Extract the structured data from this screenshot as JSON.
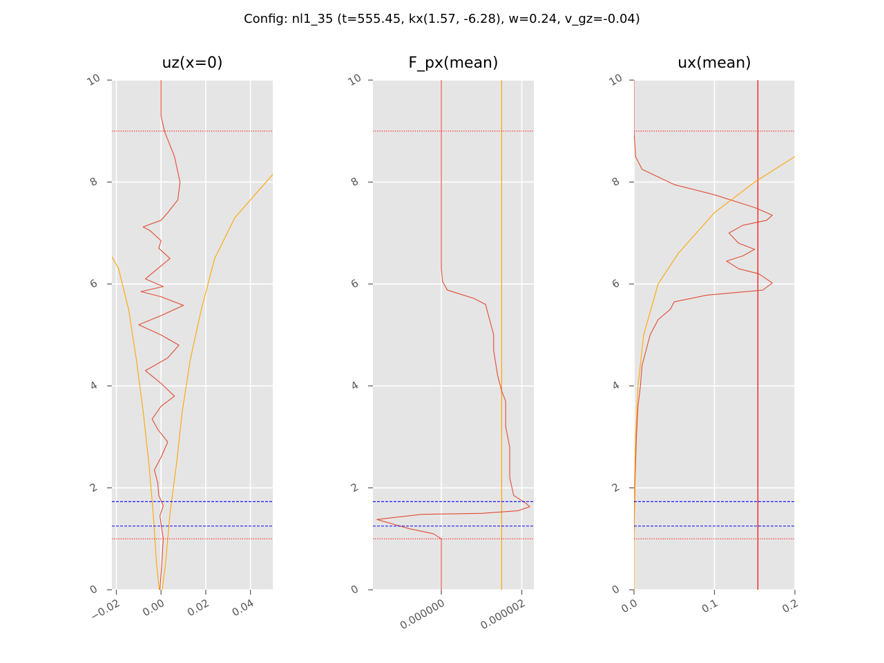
{
  "figure": {
    "title": "Config: nl1_35 (t=555.45, kx(1.57, -6.28), w=0.24, v_gz=-0.04)"
  },
  "colors": {
    "background": "#e5e5e5",
    "grid": "#ffffff",
    "profile": "#e24a33",
    "envelope": "#ffa500",
    "blue_lines": "#0000ff",
    "red_dotted": "#ff0000",
    "red_vertical": "#ff0000",
    "tick_text": "#555555"
  },
  "chart_data": [
    {
      "type": "line",
      "title": "uz(x=0)",
      "xlim": [
        -0.022,
        0.05
      ],
      "ylim": [
        0,
        10
      ],
      "xticks": [
        -0.02,
        0.0,
        0.02,
        0.04
      ],
      "xtick_labels": [
        "−0.02",
        "0.00",
        "0.02",
        "0.04"
      ],
      "yticks": [
        0,
        2,
        4,
        6,
        8,
        10
      ],
      "ytick_labels": [
        "0",
        "2",
        "4",
        "6",
        "8",
        "10"
      ],
      "grid": true,
      "hlines_dashed": [
        1.25,
        1.73
      ],
      "hlines_dotted": [
        1.0,
        9.0
      ],
      "series": [
        {
          "role": "profile",
          "points": [
            [
              -0.0005,
              0
            ],
            [
              0.0003,
              0.5
            ],
            [
              0.001,
              1.0
            ],
            [
              0.0003,
              1.2
            ],
            [
              -0.0005,
              1.45
            ],
            [
              0.001,
              1.65
            ],
            [
              -0.001,
              1.85
            ],
            [
              -0.0015,
              2.1
            ],
            [
              -0.003,
              2.35
            ],
            [
              0.0,
              2.6
            ],
            [
              0.003,
              2.9
            ],
            [
              -0.0015,
              3.15
            ],
            [
              -0.004,
              3.35
            ],
            [
              0.0,
              3.6
            ],
            [
              0.006,
              3.8
            ],
            [
              0.0,
              4.05
            ],
            [
              -0.007,
              4.3
            ],
            [
              0.003,
              4.55
            ],
            [
              0.008,
              4.8
            ],
            [
              0.0,
              5.0
            ],
            [
              -0.01,
              5.2
            ],
            [
              0.0,
              5.38
            ],
            [
              0.01,
              5.58
            ],
            [
              0.0,
              5.75
            ],
            [
              -0.009,
              5.85
            ],
            [
              0.001,
              5.95
            ],
            [
              -0.007,
              6.1
            ],
            [
              -0.0015,
              6.3
            ],
            [
              0.004,
              6.5
            ],
            [
              -0.001,
              6.7
            ],
            [
              0.0,
              6.85
            ],
            [
              -0.005,
              7.05
            ],
            [
              -0.008,
              7.12
            ],
            [
              0.0,
              7.25
            ],
            [
              0.003,
              7.4
            ],
            [
              0.0075,
              7.65
            ],
            [
              0.0085,
              8.0
            ],
            [
              0.006,
              8.5
            ],
            [
              0.0015,
              9.0
            ],
            [
              0.0,
              9.3
            ],
            [
              0.0,
              10.0
            ]
          ]
        },
        {
          "role": "envelope-right",
          "points": [
            [
              0.0005,
              0
            ],
            [
              0.002,
              0.5
            ],
            [
              0.004,
              1.5
            ],
            [
              0.007,
              2.5
            ],
            [
              0.0095,
              3.5
            ],
            [
              0.013,
              4.5
            ],
            [
              0.018,
              5.5
            ],
            [
              0.024,
              6.5
            ],
            [
              0.033,
              7.3
            ],
            [
              0.05,
              8.15
            ]
          ]
        },
        {
          "role": "envelope-left",
          "points": [
            [
              -0.0008,
              0
            ],
            [
              -0.002,
              0.5
            ],
            [
              -0.0035,
              1.5
            ],
            [
              -0.0055,
              2.5
            ],
            [
              -0.008,
              3.5
            ],
            [
              -0.011,
              4.5
            ],
            [
              -0.0145,
              5.5
            ],
            [
              -0.019,
              6.3
            ],
            [
              -0.0235,
              6.65
            ]
          ]
        }
      ]
    },
    {
      "type": "line",
      "title": "F_px(mean)",
      "xlim": [
        -1.7e-06,
        2.3e-06
      ],
      "ylim": [
        0,
        10
      ],
      "xticks": [
        0.0,
        2e-06
      ],
      "xtick_labels": [
        "0.000000",
        "0.000002"
      ],
      "yticks": [
        0,
        2,
        4,
        6,
        8,
        10
      ],
      "ytick_labels": [
        "0",
        "2",
        "4",
        "6",
        "8",
        "10"
      ],
      "grid": true,
      "hlines_dashed": [
        1.25,
        1.73
      ],
      "hlines_dotted": [
        1.0,
        9.0
      ],
      "vline_envelope": 1.5e-06,
      "series": [
        {
          "role": "profile",
          "points": [
            [
              0.0,
              0
            ],
            [
              0.0,
              1.0
            ],
            [
              -2e-07,
              1.1
            ],
            [
              -8e-07,
              1.2
            ],
            [
              -1.6e-06,
              1.38
            ],
            [
              -5e-07,
              1.48
            ],
            [
              1e-06,
              1.5
            ],
            [
              1.9e-06,
              1.55
            ],
            [
              2.2e-06,
              1.63
            ],
            [
              2.1e-06,
              1.7
            ],
            [
              1.8e-06,
              1.85
            ],
            [
              1.7e-06,
              2.2
            ],
            [
              1.7e-06,
              2.8
            ],
            [
              1.6e-06,
              3.2
            ],
            [
              1.6e-06,
              3.7
            ],
            [
              1.5e-06,
              3.9
            ],
            [
              1.4e-06,
              4.2
            ],
            [
              1.3e-06,
              4.7
            ],
            [
              1.3e-06,
              5.0
            ],
            [
              1.2e-06,
              5.3
            ],
            [
              1.1e-06,
              5.6
            ],
            [
              8e-07,
              5.72
            ],
            [
              1.5e-07,
              5.88
            ],
            [
              3e-08,
              6.05
            ],
            [
              0.0,
              6.3
            ],
            [
              0.0,
              10.0
            ]
          ]
        }
      ]
    },
    {
      "type": "line",
      "title": "ux(mean)",
      "xlim": [
        0.0,
        0.2
      ],
      "ylim": [
        0,
        10
      ],
      "xticks": [
        0.0,
        0.1,
        0.2
      ],
      "xtick_labels": [
        "0.0",
        "0.1",
        "0.2"
      ],
      "yticks": [
        0,
        2,
        4,
        6,
        8,
        10
      ],
      "ytick_labels": [
        "0",
        "2",
        "4",
        "6",
        "8",
        "10"
      ],
      "grid": true,
      "hlines_dashed": [
        1.25,
        1.73
      ],
      "hlines_dotted": [
        1.0,
        9.0
      ],
      "vline_red": 0.154,
      "series": [
        {
          "role": "profile",
          "points": [
            [
              0.0,
              0
            ],
            [
              0.0,
              1.0
            ],
            [
              0.001,
              2.0
            ],
            [
              0.003,
              3.0
            ],
            [
              0.005,
              3.6
            ],
            [
              0.008,
              4.0
            ],
            [
              0.01,
              4.4
            ],
            [
              0.015,
              4.7
            ],
            [
              0.02,
              5.0
            ],
            [
              0.03,
              5.3
            ],
            [
              0.045,
              5.5
            ],
            [
              0.05,
              5.65
            ],
            [
              0.09,
              5.78
            ],
            [
              0.16,
              5.88
            ],
            [
              0.172,
              6.02
            ],
            [
              0.155,
              6.2
            ],
            [
              0.13,
              6.3
            ],
            [
              0.115,
              6.45
            ],
            [
              0.135,
              6.55
            ],
            [
              0.15,
              6.68
            ],
            [
              0.13,
              6.8
            ],
            [
              0.118,
              7.0
            ],
            [
              0.135,
              7.15
            ],
            [
              0.165,
              7.25
            ],
            [
              0.172,
              7.35
            ],
            [
              0.15,
              7.5
            ],
            [
              0.1,
              7.75
            ],
            [
              0.05,
              7.95
            ],
            [
              0.01,
              8.25
            ],
            [
              0.002,
              8.5
            ],
            [
              0.0,
              9.0
            ],
            [
              0.0,
              10.0
            ]
          ]
        },
        {
          "role": "envelope",
          "points": [
            [
              0.0,
              0
            ],
            [
              0.0,
              1.0
            ],
            [
              0.0005,
              2.0
            ],
            [
              0.002,
              3.0
            ],
            [
              0.005,
              4.0
            ],
            [
              0.012,
              5.0
            ],
            [
              0.03,
              6.0
            ],
            [
              0.055,
              6.6
            ],
            [
              0.1,
              7.4
            ],
            [
              0.15,
              8.0
            ],
            [
              0.2,
              8.5
            ]
          ]
        }
      ]
    }
  ]
}
